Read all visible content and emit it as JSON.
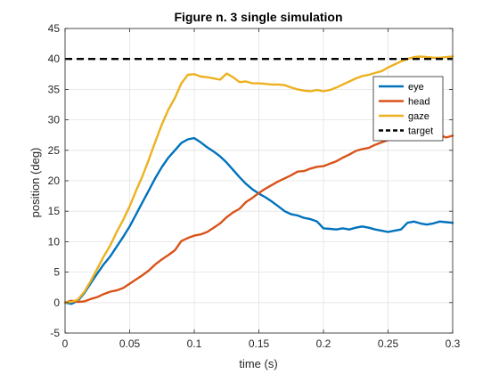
{
  "chart_data": {
    "type": "line",
    "title": "Figure n. 3 single simulation",
    "xlabel": "time (s)",
    "ylabel": "position (deg)",
    "xlim": [
      0,
      0.3
    ],
    "ylim": [
      -5,
      45
    ],
    "xticks": [
      0,
      0.05,
      0.1,
      0.15,
      0.2,
      0.25,
      0.3
    ],
    "xtick_labels": [
      "0",
      "0.05",
      "0.1",
      "0.15",
      "0.2",
      "0.25",
      "0.3"
    ],
    "yticks": [
      -5,
      0,
      5,
      10,
      15,
      20,
      25,
      30,
      35,
      40,
      45
    ],
    "ytick_labels": [
      "-5",
      "0",
      "5",
      "10",
      "15",
      "20",
      "25",
      "30",
      "35",
      "40",
      "45"
    ],
    "grid": true,
    "legend": "upper-right",
    "series": [
      {
        "name": "eye",
        "color": "#0072BD",
        "style": "solid",
        "x": [
          0,
          0.005,
          0.01,
          0.015,
          0.02,
          0.025,
          0.03,
          0.035,
          0.04,
          0.045,
          0.05,
          0.055,
          0.06,
          0.065,
          0.07,
          0.075,
          0.08,
          0.085,
          0.09,
          0.095,
          0.1,
          0.105,
          0.11,
          0.115,
          0.12,
          0.125,
          0.13,
          0.135,
          0.14,
          0.145,
          0.15,
          0.155,
          0.16,
          0.165,
          0.17,
          0.175,
          0.18,
          0.185,
          0.19,
          0.195,
          0.2,
          0.205,
          0.21,
          0.215,
          0.22,
          0.225,
          0.23,
          0.235,
          0.24,
          0.245,
          0.25,
          0.255,
          0.26,
          0.265,
          0.27,
          0.275,
          0.28,
          0.285,
          0.29,
          0.295,
          0.3
        ],
        "y": [
          0,
          -0.2,
          0.3,
          1.6,
          3.2,
          4.8,
          6.3,
          7.6,
          9.2,
          10.8,
          12.5,
          14.5,
          16.5,
          18.5,
          20.5,
          22.3,
          23.8,
          25.0,
          26.2,
          26.8,
          27.0,
          26.3,
          25.5,
          24.8,
          24.0,
          23.0,
          21.8,
          20.6,
          19.5,
          18.6,
          17.9,
          17.3,
          16.6,
          15.8,
          15.0,
          14.5,
          14.3,
          13.9,
          13.7,
          13.3,
          12.2,
          12.1,
          12.0,
          12.2,
          12.0,
          12.3,
          12.5,
          12.3,
          12.0,
          11.8,
          11.6,
          11.8,
          12.0,
          13.1,
          13.3,
          13.0,
          12.8,
          13.0,
          13.3,
          13.2,
          13.1
        ]
      },
      {
        "name": "head",
        "color": "#D95319",
        "style": "solid",
        "x": [
          0,
          0.005,
          0.01,
          0.015,
          0.02,
          0.025,
          0.03,
          0.035,
          0.04,
          0.045,
          0.05,
          0.055,
          0.06,
          0.065,
          0.07,
          0.075,
          0.08,
          0.085,
          0.09,
          0.095,
          0.1,
          0.105,
          0.11,
          0.115,
          0.12,
          0.125,
          0.13,
          0.135,
          0.14,
          0.145,
          0.15,
          0.155,
          0.16,
          0.165,
          0.17,
          0.175,
          0.18,
          0.185,
          0.19,
          0.195,
          0.2,
          0.205,
          0.21,
          0.215,
          0.22,
          0.225,
          0.23,
          0.235,
          0.24,
          0.245,
          0.25,
          0.255,
          0.26,
          0.265,
          0.27,
          0.275,
          0.28,
          0.285,
          0.29,
          0.295,
          0.3
        ],
        "y": [
          0,
          0.3,
          0.1,
          0.2,
          0.6,
          0.9,
          1.4,
          1.8,
          2.0,
          2.4,
          3.1,
          3.8,
          4.5,
          5.3,
          6.3,
          7.1,
          7.8,
          8.6,
          10.1,
          10.6,
          11.0,
          11.2,
          11.6,
          12.3,
          13.0,
          14.0,
          14.8,
          15.4,
          16.5,
          17.2,
          18.0,
          18.7,
          19.3,
          19.9,
          20.4,
          20.9,
          21.5,
          21.6,
          22.0,
          22.3,
          22.4,
          22.8,
          23.2,
          23.8,
          24.3,
          24.9,
          25.2,
          25.4,
          25.9,
          26.3,
          26.7,
          27.0,
          27.1,
          27.2,
          27.4,
          27.2,
          27.0,
          27.3,
          27.5,
          27.1,
          27.4
        ]
      },
      {
        "name": "gaze",
        "color": "#EDB120",
        "style": "solid",
        "x": [
          0,
          0.005,
          0.01,
          0.015,
          0.02,
          0.025,
          0.03,
          0.035,
          0.04,
          0.045,
          0.05,
          0.055,
          0.06,
          0.065,
          0.07,
          0.075,
          0.08,
          0.085,
          0.09,
          0.095,
          0.1,
          0.105,
          0.11,
          0.115,
          0.12,
          0.125,
          0.13,
          0.135,
          0.14,
          0.145,
          0.15,
          0.155,
          0.16,
          0.165,
          0.17,
          0.175,
          0.18,
          0.185,
          0.19,
          0.195,
          0.2,
          0.205,
          0.21,
          0.215,
          0.22,
          0.225,
          0.23,
          0.235,
          0.24,
          0.245,
          0.25,
          0.255,
          0.26,
          0.265,
          0.27,
          0.275,
          0.28,
          0.285,
          0.29,
          0.295,
          0.3
        ],
        "y": [
          0,
          0.1,
          0.5,
          1.8,
          3.6,
          5.6,
          7.6,
          9.4,
          11.6,
          13.6,
          15.8,
          18.4,
          20.8,
          23.6,
          26.5,
          29.3,
          31.7,
          33.6,
          36.0,
          37.4,
          37.5,
          37.1,
          37.0,
          36.8,
          36.6,
          37.6,
          37.0,
          36.2,
          36.3,
          36.0,
          36.0,
          35.9,
          35.8,
          35.8,
          35.7,
          35.3,
          35.0,
          34.8,
          34.7,
          34.9,
          34.7,
          34.9,
          35.3,
          35.8,
          36.3,
          36.8,
          37.2,
          37.4,
          37.7,
          38.0,
          38.6,
          39.1,
          39.6,
          40.0,
          40.3,
          40.4,
          40.3,
          40.2,
          40.2,
          40.3,
          40.4
        ]
      },
      {
        "name": "target",
        "color": "#000000",
        "style": "dashed",
        "x": [
          0,
          0.3
        ],
        "y": [
          40,
          40
        ]
      }
    ]
  }
}
